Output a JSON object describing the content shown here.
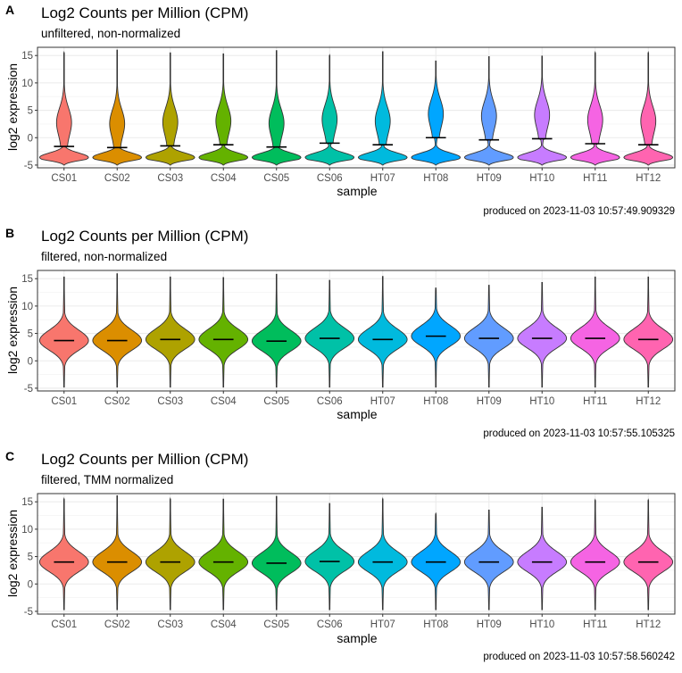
{
  "samples": [
    "CS01",
    "CS02",
    "CS03",
    "CS04",
    "CS05",
    "CS06",
    "HT07",
    "HT08",
    "HT09",
    "HT10",
    "HT11",
    "HT12"
  ],
  "colors": [
    "#F8766D",
    "#DB8E00",
    "#AEA200",
    "#64B200",
    "#00BD5C",
    "#00C1A7",
    "#00BADE",
    "#00A6FF",
    "#619CFF",
    "#C77CFF",
    "#F564E3",
    "#FF64B0"
  ],
  "chart_data": [
    {
      "type": "violin",
      "tag": "A",
      "title": "Log2 Counts per Million (CPM)",
      "subtitle": "unfiltered, non-normalized",
      "xlabel": "sample",
      "ylabel": "log2 expression",
      "ylim": [
        -5.5,
        16.5
      ],
      "yticks": [
        -5,
        0,
        5,
        10,
        15
      ],
      "categories": [
        "CS01",
        "CS02",
        "CS03",
        "CS04",
        "CS05",
        "CS06",
        "HT07",
        "HT08",
        "HT09",
        "HT10",
        "HT11",
        "HT12"
      ],
      "medians": [
        -1.6,
        -1.8,
        -1.5,
        -1.3,
        -1.7,
        -1.0,
        -1.3,
        0.0,
        -0.4,
        -0.2,
        -1.1,
        -1.3
      ],
      "maxima": [
        15.6,
        16.0,
        15.5,
        15.3,
        15.9,
        15.1,
        15.7,
        14.0,
        14.8,
        14.9,
        15.6,
        15.6
      ],
      "minima": [
        -5.0,
        -5.0,
        -5.0,
        -5.0,
        -5.0,
        -5.0,
        -5.0,
        -5.0,
        -5.0,
        -5.0,
        -5.0,
        -5.0
      ],
      "shape": "bottom-heavy",
      "caption": "produced on 2023-11-03 10:57:49.909329"
    },
    {
      "type": "violin",
      "tag": "B",
      "title": "Log2 Counts per Million (CPM)",
      "subtitle": "filtered, non-normalized",
      "xlabel": "sample",
      "ylabel": "log2 expression",
      "ylim": [
        -5.5,
        16.5
      ],
      "yticks": [
        -5,
        0,
        5,
        10,
        15
      ],
      "categories": [
        "CS01",
        "CS02",
        "CS03",
        "CS04",
        "CS05",
        "CS06",
        "HT07",
        "HT08",
        "HT09",
        "HT10",
        "HT11",
        "HT12"
      ],
      "medians": [
        3.7,
        3.7,
        3.9,
        3.9,
        3.6,
        4.1,
        3.9,
        4.5,
        4.1,
        4.1,
        4.1,
        3.9
      ],
      "maxima": [
        15.3,
        15.9,
        15.3,
        15.2,
        15.8,
        14.7,
        15.4,
        13.3,
        13.8,
        14.3,
        15.3,
        15.3
      ],
      "minima": [
        -4.8,
        -4.8,
        -4.8,
        -4.8,
        -4.8,
        -4.8,
        -4.8,
        -4.8,
        -4.8,
        -4.8,
        -4.8,
        -4.8
      ],
      "shape": "middle",
      "caption": "produced on 2023-11-03 10:57:55.105325"
    },
    {
      "type": "violin",
      "tag": "C",
      "title": "Log2 Counts per Million (CPM)",
      "subtitle": "filtered, TMM normalized",
      "xlabel": "sample",
      "ylabel": "log2 expression",
      "ylim": [
        -5.5,
        16.5
      ],
      "yticks": [
        -5,
        0,
        5,
        10,
        15
      ],
      "categories": [
        "CS01",
        "CS02",
        "CS03",
        "CS04",
        "CS05",
        "CS06",
        "HT07",
        "HT08",
        "HT09",
        "HT10",
        "HT11",
        "HT12"
      ],
      "medians": [
        4.0,
        4.0,
        4.0,
        4.0,
        3.8,
        4.1,
        4.0,
        4.0,
        4.0,
        4.0,
        4.0,
        4.0
      ],
      "maxima": [
        15.6,
        16.1,
        15.6,
        15.5,
        16.0,
        14.7,
        15.6,
        12.9,
        13.5,
        14.0,
        15.4,
        15.4
      ],
      "minima": [
        -4.7,
        -4.7,
        -4.7,
        -4.7,
        -4.7,
        -4.7,
        -4.7,
        -4.7,
        -4.7,
        -4.7,
        -4.7,
        -4.7
      ],
      "shape": "middle",
      "caption": "produced on 2023-11-03 10:57:58.560242"
    }
  ]
}
